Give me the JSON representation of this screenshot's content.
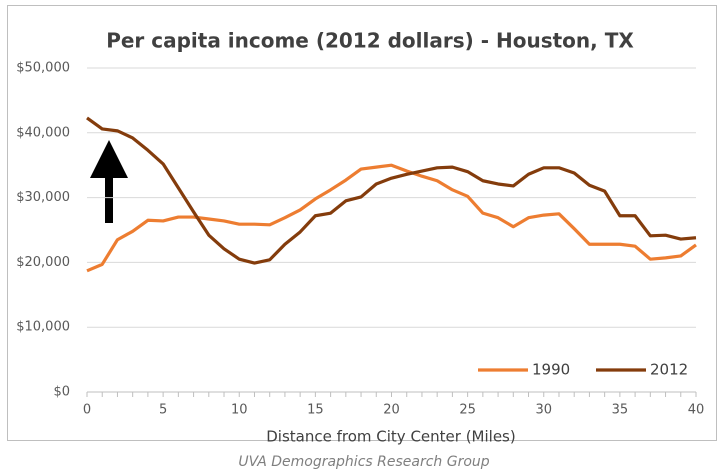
{
  "chart_data": {
    "type": "line",
    "title": "Per capita income (2012 dollars) - Houston, TX",
    "x_label": "Distance from City Center (Miles)",
    "source": "UVA Demographics Research Group",
    "x": [
      0,
      1,
      2,
      3,
      4,
      5,
      6,
      7,
      8,
      9,
      10,
      11,
      12,
      13,
      14,
      15,
      16,
      17,
      18,
      19,
      20,
      21,
      22,
      23,
      24,
      25,
      26,
      27,
      28,
      29,
      30,
      31,
      32,
      33,
      34,
      35,
      36,
      37,
      38,
      39,
      40
    ],
    "series": [
      {
        "name": "1990",
        "color": "#ed7d31",
        "values": [
          18700,
          19700,
          23500,
          24800,
          26500,
          26400,
          27000,
          27000,
          26700,
          26400,
          25900,
          25900,
          25800,
          26900,
          28100,
          29800,
          31200,
          32700,
          34400,
          34700,
          35000,
          34100,
          33300,
          32600,
          31200,
          30200,
          27600,
          26900,
          25500,
          26900,
          27300,
          27500,
          25200,
          22800,
          22800,
          22800,
          22500,
          20500,
          20700,
          21000,
          22700
        ]
      },
      {
        "name": "2012",
        "color": "#843c0c",
        "values": [
          42300,
          40600,
          40300,
          39200,
          37300,
          35200,
          31500,
          27800,
          24200,
          22100,
          20500,
          19900,
          20400,
          22800,
          24700,
          27200,
          27600,
          29500,
          30100,
          32100,
          33000,
          33600,
          34100,
          34600,
          34700,
          34000,
          32600,
          32100,
          31800,
          33600,
          34600,
          34600,
          33800,
          31900,
          31000,
          27200,
          27200,
          24100,
          24200,
          23600,
          23800
        ]
      }
    ],
    "xlim": [
      0,
      40
    ],
    "xticks": [
      0,
      5,
      10,
      15,
      20,
      25,
      30,
      35,
      40
    ],
    "ylim": [
      0,
      50000
    ],
    "yticks": [
      {
        "value": 0,
        "label": "$0"
      },
      {
        "value": 10000,
        "label": "$10,000"
      },
      {
        "value": 20000,
        "label": "$20,000"
      },
      {
        "value": 30000,
        "label": "$30,000"
      },
      {
        "value": 40000,
        "label": "$40,000"
      },
      {
        "value": 50000,
        "label": "$50,000"
      }
    ],
    "grid": true,
    "legend": "bottom-right"
  }
}
